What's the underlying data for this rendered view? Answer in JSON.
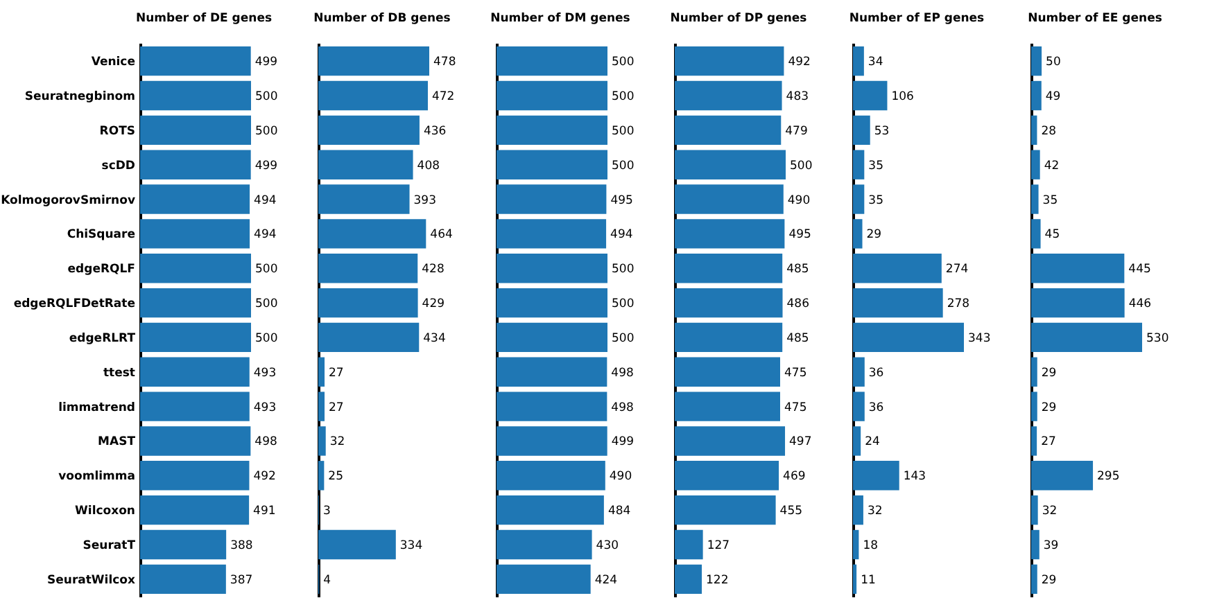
{
  "chart_data": [
    {
      "type": "bar",
      "orientation": "horizontal",
      "title": "Number of DE genes",
      "categories": [
        "Venice",
        "Seuratnegbinom",
        "ROTS",
        "scDD",
        "KolmogorovSmirnov",
        "ChiSquare",
        "edgeRQLF",
        "edgeRQLFDetRate",
        "edgeRLRT",
        "ttest",
        "limmatrend",
        "MAST",
        "voomlimma",
        "Wilcoxon",
        "SeuratT",
        "SeuratWilcox"
      ],
      "values": [
        499,
        500,
        500,
        499,
        494,
        494,
        500,
        500,
        500,
        493,
        493,
        498,
        492,
        491,
        388,
        387
      ],
      "color": "#1f77b4",
      "data_labels": true,
      "tick_labels": "y"
    },
    {
      "type": "bar",
      "orientation": "horizontal",
      "title": "Number of DB genes",
      "categories": [
        null,
        null,
        null,
        null,
        null,
        null,
        null,
        null,
        null,
        null,
        null,
        null,
        null,
        null,
        null,
        null
      ],
      "values": [
        478,
        472,
        436,
        408,
        393,
        464,
        428,
        429,
        434,
        27,
        27,
        32,
        25,
        3,
        334,
        4
      ],
      "color": "#1f77b4",
      "data_labels": true,
      "tick_labels": false
    },
    {
      "type": "bar",
      "orientation": "horizontal",
      "title": "Number of DM genes",
      "categories": [
        null,
        null,
        null,
        null,
        null,
        null,
        null,
        null,
        null,
        null,
        null,
        null,
        null,
        null,
        null,
        null
      ],
      "values": [
        500,
        500,
        500,
        500,
        495,
        494,
        500,
        500,
        500,
        498,
        498,
        499,
        490,
        484,
        430,
        424
      ],
      "color": "#1f77b4",
      "data_labels": true,
      "tick_labels": false
    },
    {
      "type": "bar",
      "orientation": "horizontal",
      "title": "Number of DP genes",
      "categories": [
        null,
        null,
        null,
        null,
        null,
        null,
        null,
        null,
        null,
        null,
        null,
        null,
        null,
        null,
        null,
        null
      ],
      "values": [
        492,
        483,
        479,
        500,
        490,
        495,
        485,
        486,
        485,
        475,
        475,
        497,
        469,
        455,
        127,
        122
      ],
      "color": "#1f77b4",
      "data_labels": true,
      "tick_labels": false
    },
    {
      "type": "bar",
      "orientation": "horizontal",
      "title": "Number of EP genes",
      "categories": [
        null,
        null,
        null,
        null,
        null,
        null,
        null,
        null,
        null,
        null,
        null,
        null,
        null,
        null,
        null,
        null
      ],
      "values": [
        34,
        106,
        53,
        35,
        35,
        29,
        274,
        278,
        343,
        36,
        36,
        24,
        143,
        32,
        18,
        11
      ],
      "color": "#1f77b4",
      "data_labels": true,
      "tick_labels": false
    },
    {
      "type": "bar",
      "orientation": "horizontal",
      "title": "Number of EE genes",
      "categories": [
        null,
        null,
        null,
        null,
        null,
        null,
        null,
        null,
        null,
        null,
        null,
        null,
        null,
        null,
        null,
        null
      ],
      "values": [
        50,
        49,
        28,
        42,
        35,
        45,
        445,
        446,
        530,
        29,
        29,
        27,
        295,
        32,
        39,
        29
      ],
      "color": "#1f77b4",
      "data_labels": true,
      "tick_labels": false
    }
  ]
}
